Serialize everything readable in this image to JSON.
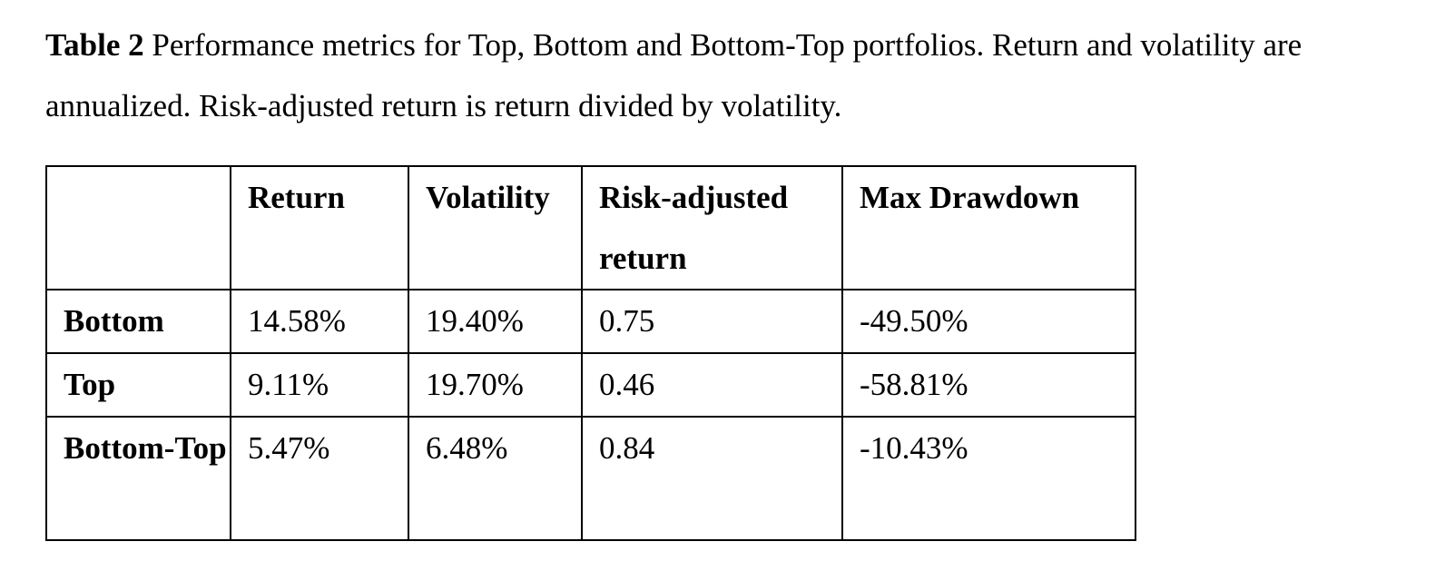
{
  "caption": {
    "label": "Table 2",
    "text": " Performance metrics for Top, Bottom and Bottom-Top portfolios. Return and volatility are annualized. Risk-adjusted return is return divided by volatility."
  },
  "table": {
    "headers": [
      "",
      "Return",
      "Volatility",
      "Risk-adjusted return",
      "Max Drawdown"
    ],
    "rows": [
      {
        "label": "Bottom",
        "return": "14.58%",
        "volatility": "19.40%",
        "risk_adjusted": "0.75",
        "max_drawdown": "-49.50%",
        "bold_cells": [
          "return"
        ]
      },
      {
        "label": "Top",
        "return": "9.11%",
        "volatility": "19.70%",
        "risk_adjusted": "0.46",
        "max_drawdown": "-58.81%",
        "bold_cells": []
      },
      {
        "label": "Bottom-Top",
        "return": "5.47%",
        "volatility": "6.48%",
        "risk_adjusted": "0.84",
        "max_drawdown": "-10.43%",
        "bold_cells": [
          "volatility",
          "risk_adjusted",
          "max_drawdown"
        ]
      }
    ]
  }
}
